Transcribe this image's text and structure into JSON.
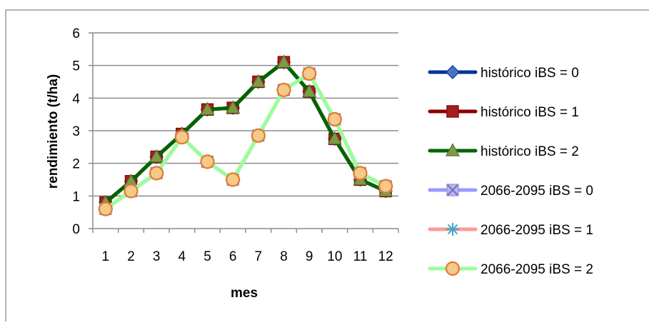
{
  "chart_data": {
    "type": "line",
    "xlabel": "mes",
    "ylabel": "rendimiento (t/ha)",
    "ylim": [
      0,
      6
    ],
    "yticks": [
      0,
      1,
      2,
      3,
      4,
      5,
      6
    ],
    "categories": [
      "1",
      "2",
      "3",
      "4",
      "5",
      "6",
      "7",
      "8",
      "9",
      "10",
      "11",
      "12"
    ],
    "grid": "horizontal",
    "legend_position": "right",
    "series": [
      {
        "name": "histórico iBS = 0",
        "color": "#003399",
        "marker": "diamond",
        "marker_fill": "#4a72c4",
        "values": [
          0.8,
          1.45,
          2.2,
          2.9,
          3.65,
          3.7,
          4.5,
          5.1,
          4.2,
          2.75,
          1.5,
          1.15
        ]
      },
      {
        "name": "histórico iBS = 1",
        "color": "#8b0000",
        "marker": "square",
        "marker_fill": "#a41e1e",
        "values": [
          0.8,
          1.45,
          2.2,
          2.9,
          3.65,
          3.7,
          4.5,
          5.1,
          4.2,
          2.75,
          1.5,
          1.15
        ]
      },
      {
        "name": "histórico iBS = 2",
        "color": "#006400",
        "marker": "triangle",
        "marker_fill": "#7f9a44",
        "values": [
          0.8,
          1.45,
          2.2,
          2.9,
          3.65,
          3.7,
          4.5,
          5.1,
          4.2,
          2.75,
          1.5,
          1.15
        ]
      },
      {
        "name": "2066-2095 iBS = 0",
        "color": "#9999ff",
        "marker": "x",
        "marker_fill": "#7a70c8",
        "values": [
          0.6,
          1.15,
          1.7,
          2.8,
          2.05,
          1.5,
          2.85,
          4.25,
          4.75,
          3.35,
          1.7,
          1.3
        ]
      },
      {
        "name": "2066-2095 iBS = 1",
        "color": "#ff9999",
        "marker": "star",
        "marker_fill": "#3fa7c9",
        "values": [
          0.6,
          1.15,
          1.7,
          2.8,
          2.05,
          1.5,
          2.85,
          4.25,
          4.75,
          3.35,
          1.7,
          1.3
        ]
      },
      {
        "name": "2066-2095 iBS = 2",
        "color": "#99ff99",
        "marker": "circle",
        "marker_fill": "#f5c98a",
        "marker_stroke": "#e07b2e",
        "values": [
          0.6,
          1.15,
          1.7,
          2.8,
          2.05,
          1.5,
          2.85,
          4.25,
          4.75,
          3.35,
          1.7,
          1.3
        ]
      }
    ]
  }
}
